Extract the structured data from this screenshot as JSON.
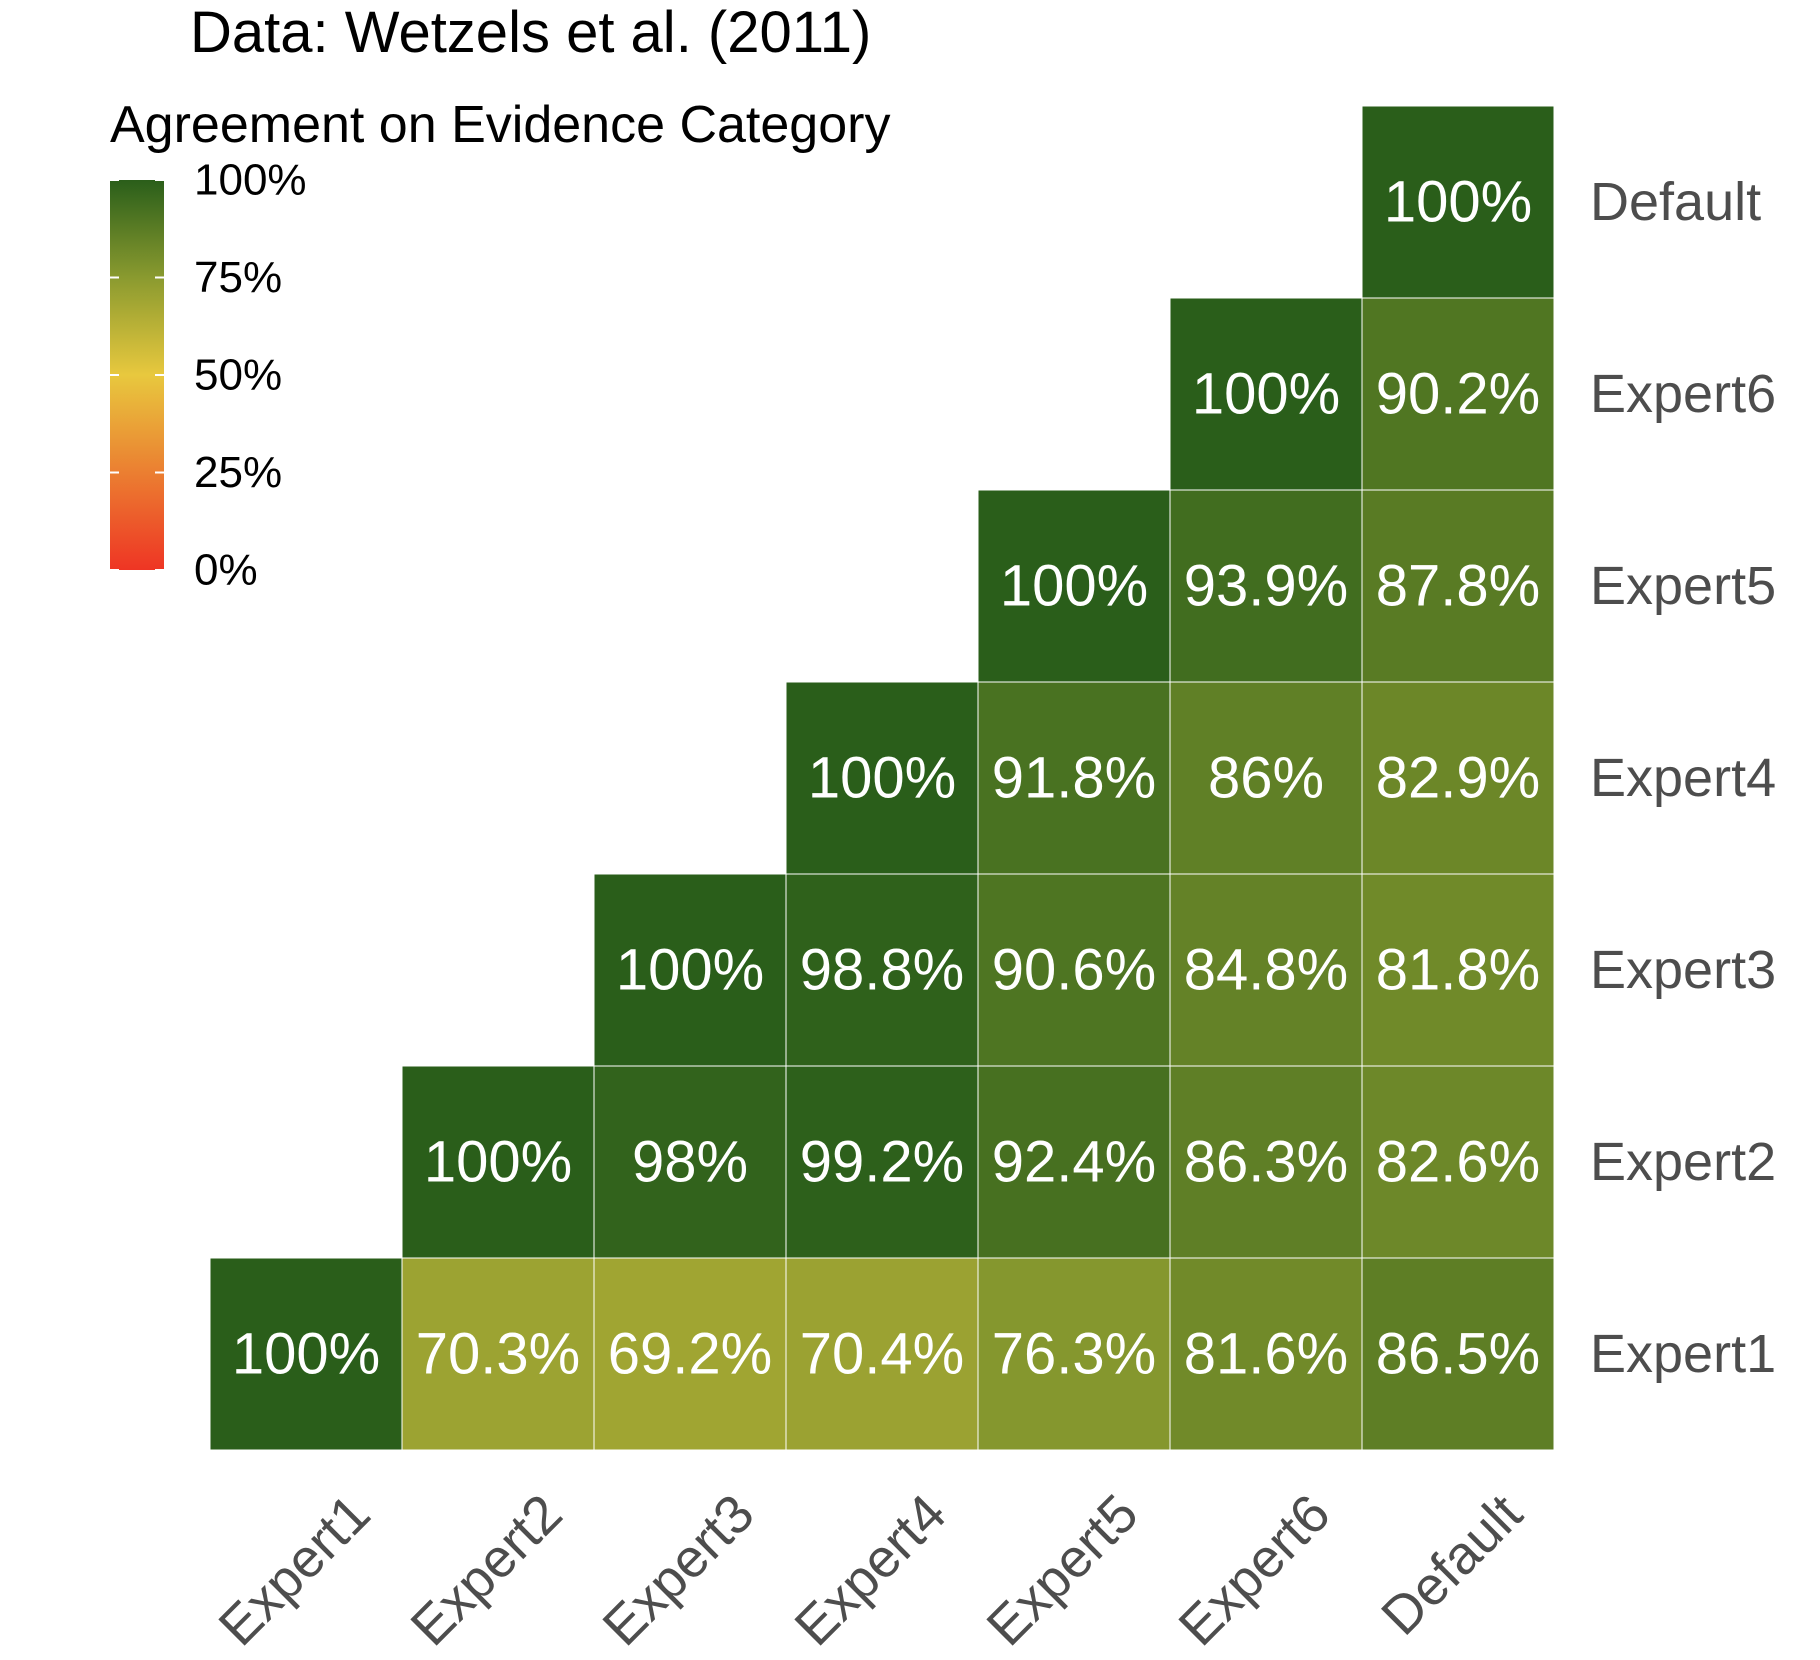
{
  "chart_data": {
    "type": "heatmap",
    "title": "Data: Wetzels et al. (2011)",
    "legend": {
      "title": "Agreement on Evidence Category",
      "placement": "top-left",
      "ticks": [
        "100%",
        "75%",
        "50%",
        "25%",
        "0%"
      ],
      "tick_values": [
        100,
        75,
        50,
        25,
        0
      ],
      "range": [
        0,
        100
      ]
    },
    "x_categories": [
      "Expert1",
      "Expert2",
      "Expert3",
      "Expert4",
      "Expert5",
      "Expert6",
      "Default"
    ],
    "y_categories": [
      "Expert1",
      "Expert2",
      "Expert3",
      "Expert4",
      "Expert5",
      "Expert6",
      "Default"
    ],
    "cells": [
      {
        "x": "Expert1",
        "y": "Expert1",
        "value": 100,
        "label": "100%"
      },
      {
        "x": "Expert2",
        "y": "Expert1",
        "value": 70.3,
        "label": "70.3%"
      },
      {
        "x": "Expert3",
        "y": "Expert1",
        "value": 69.2,
        "label": "69.2%"
      },
      {
        "x": "Expert4",
        "y": "Expert1",
        "value": 70.4,
        "label": "70.4%"
      },
      {
        "x": "Expert5",
        "y": "Expert1",
        "value": 76.3,
        "label": "76.3%"
      },
      {
        "x": "Expert6",
        "y": "Expert1",
        "value": 81.6,
        "label": "81.6%"
      },
      {
        "x": "Default",
        "y": "Expert1",
        "value": 86.5,
        "label": "86.5%"
      },
      {
        "x": "Expert2",
        "y": "Expert2",
        "value": 100,
        "label": "100%"
      },
      {
        "x": "Expert3",
        "y": "Expert2",
        "value": 98,
        "label": "98%"
      },
      {
        "x": "Expert4",
        "y": "Expert2",
        "value": 99.2,
        "label": "99.2%"
      },
      {
        "x": "Expert5",
        "y": "Expert2",
        "value": 92.4,
        "label": "92.4%"
      },
      {
        "x": "Expert6",
        "y": "Expert2",
        "value": 86.3,
        "label": "86.3%"
      },
      {
        "x": "Default",
        "y": "Expert2",
        "value": 82.6,
        "label": "82.6%"
      },
      {
        "x": "Expert3",
        "y": "Expert3",
        "value": 100,
        "label": "100%"
      },
      {
        "x": "Expert4",
        "y": "Expert3",
        "value": 98.8,
        "label": "98.8%"
      },
      {
        "x": "Expert5",
        "y": "Expert3",
        "value": 90.6,
        "label": "90.6%"
      },
      {
        "x": "Expert6",
        "y": "Expert3",
        "value": 84.8,
        "label": "84.8%"
      },
      {
        "x": "Default",
        "y": "Expert3",
        "value": 81.8,
        "label": "81.8%"
      },
      {
        "x": "Expert4",
        "y": "Expert4",
        "value": 100,
        "label": "100%"
      },
      {
        "x": "Expert5",
        "y": "Expert4",
        "value": 91.8,
        "label": "91.8%"
      },
      {
        "x": "Expert6",
        "y": "Expert4",
        "value": 86,
        "label": "86%"
      },
      {
        "x": "Default",
        "y": "Expert4",
        "value": 82.9,
        "label": "82.9%"
      },
      {
        "x": "Expert5",
        "y": "Expert5",
        "value": 100,
        "label": "100%"
      },
      {
        "x": "Expert6",
        "y": "Expert5",
        "value": 93.9,
        "label": "93.9%"
      },
      {
        "x": "Default",
        "y": "Expert5",
        "value": 87.8,
        "label": "87.8%"
      },
      {
        "x": "Expert6",
        "y": "Expert6",
        "value": 100,
        "label": "100%"
      },
      {
        "x": "Default",
        "y": "Expert6",
        "value": 90.2,
        "label": "90.2%"
      },
      {
        "x": "Default",
        "y": "Default",
        "value": 100,
        "label": "100%"
      }
    ],
    "color_scale": {
      "stops": [
        {
          "value": 0,
          "color": "#ee3524"
        },
        {
          "value": 50,
          "color": "#e8c83e"
        },
        {
          "value": 75,
          "color": "#8a9a2f"
        },
        {
          "value": 100,
          "color": "#2a5e1a"
        }
      ]
    },
    "grid": false,
    "x_tick_rotation": "45deg",
    "y_axis_side": "right"
  }
}
